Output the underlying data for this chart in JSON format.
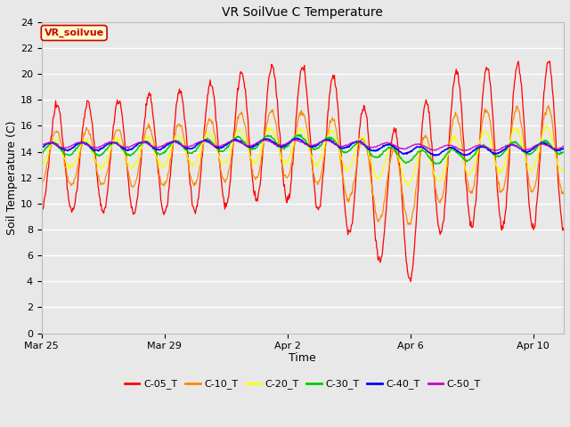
{
  "title": "VR SoilVue C Temperature",
  "xlabel": "Time",
  "ylabel": "Soil Temperature (C)",
  "ylim": [
    0,
    24
  ],
  "yticks": [
    0,
    2,
    4,
    6,
    8,
    10,
    12,
    14,
    16,
    18,
    20,
    22,
    24
  ],
  "bg_color": "#e8e8e8",
  "plot_bg_color": "#e8e8e8",
  "grid_color": "#ffffff",
  "annotation_text": "VR_soilvue",
  "annotation_color": "#cc0000",
  "annotation_bg": "#ffffcc",
  "annotation_border": "#cc0000",
  "series_colors": {
    "C-05_T": "#ff0000",
    "C-10_T": "#ff8800",
    "C-20_T": "#ffff00",
    "C-30_T": "#00cc00",
    "C-40_T": "#0000ff",
    "C-50_T": "#cc00cc"
  },
  "legend_labels": [
    "C-05_T",
    "C-10_T",
    "C-20_T",
    "C-30_T",
    "C-40_T",
    "C-50_T"
  ],
  "x_tick_dates": [
    "Mar 25",
    "Mar 29",
    "Apr 2",
    "Apr 6",
    "Apr 10"
  ],
  "x_tick_values": [
    0,
    4,
    8,
    12,
    16
  ]
}
